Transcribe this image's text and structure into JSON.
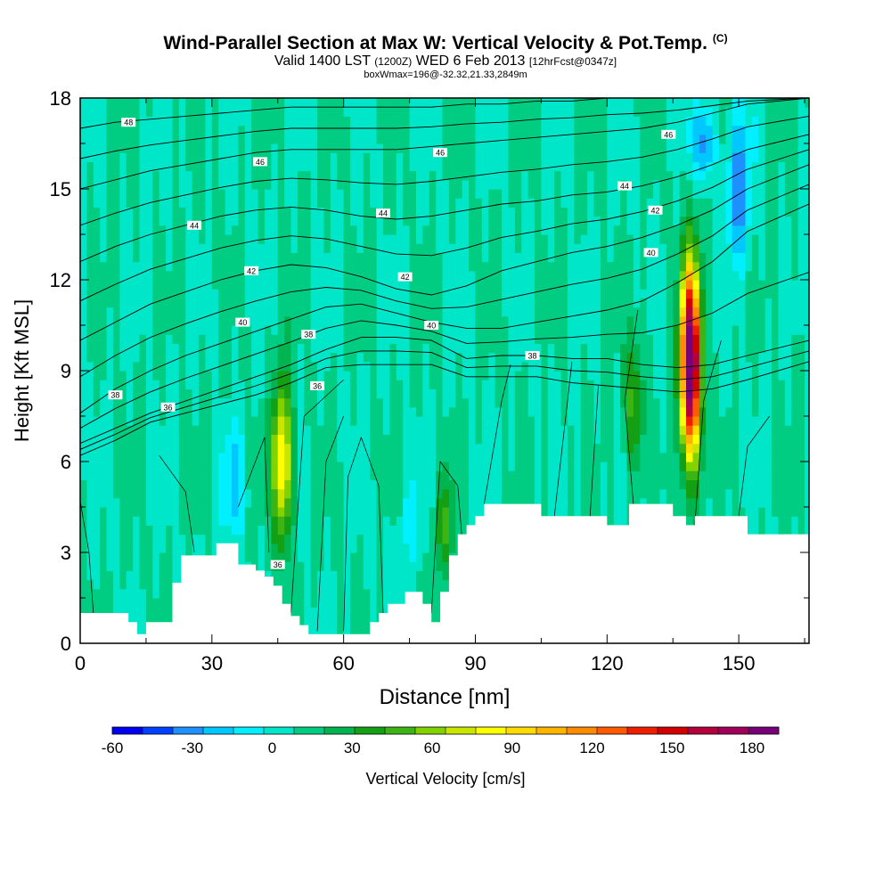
{
  "header": {
    "title": "Wind-Parallel Section at Max W: Vertical Velocity & Pot.Temp.",
    "title_tag": "(C)",
    "valid_prefix": "Valid 1400 LST",
    "valid_z": "(1200Z)",
    "valid_date": "WED 6 Feb 2013",
    "forecast": "[12hrFcst@0347z]",
    "box_info": "boxWmax=196@-32.32,21.33,2849m"
  },
  "chart_data": {
    "type": "heatmap",
    "xlabel": "Distance [nm]",
    "ylabel": "Height [Kft MSL]",
    "xlim": [
      0,
      166
    ],
    "ylim": [
      0,
      18
    ],
    "x_ticks": [
      0,
      30,
      60,
      90,
      120,
      150
    ],
    "y_ticks": [
      0,
      3,
      6,
      9,
      12,
      15,
      18
    ],
    "colorbar": {
      "label": "Vertical Velocity [cm/s]",
      "ticks": [
        -60,
        -30,
        0,
        30,
        60,
        90,
        120,
        150,
        180
      ],
      "range": [
        -60,
        190
      ],
      "colors": [
        "#0000f0",
        "#0040ff",
        "#1e90ff",
        "#00c8ff",
        "#00f0ff",
        "#00e6c8",
        "#00cd82",
        "#00b450",
        "#14a014",
        "#3cb414",
        "#82d200",
        "#c8e600",
        "#ffff00",
        "#ffdc00",
        "#ffb400",
        "#ff8c00",
        "#ff5a00",
        "#f01e00",
        "#d20000",
        "#b4003c",
        "#a0005a",
        "#780078"
      ]
    },
    "jets": [
      {
        "x": 46,
        "z_bottom": 2.0,
        "z_top": 10.0,
        "w_max": 85
      },
      {
        "x": 139,
        "z_bottom": 4.5,
        "z_top": 14.0,
        "w_max": 196
      },
      {
        "x": 83,
        "z_bottom": 1.5,
        "z_top": 6.5,
        "w_max": 35
      },
      {
        "x": 126,
        "z_bottom": 4.6,
        "z_top": 11.0,
        "w_max": 38
      }
    ],
    "downdrafts": [
      {
        "x": 35,
        "z_bottom": 3.0,
        "z_top": 7.5,
        "w_min": -25
      },
      {
        "x": 150,
        "z_bottom": 12.0,
        "z_top": 18.0,
        "w_min": -45
      },
      {
        "x": 142,
        "z_bottom": 15.0,
        "z_top": 18.0,
        "w_min": -40
      },
      {
        "x": 75,
        "z_bottom": 2.0,
        "z_top": 6.0,
        "w_min": -15
      }
    ],
    "terrain": {
      "x": [
        0,
        11,
        13,
        15,
        21,
        23,
        24,
        31,
        35,
        36,
        40,
        42,
        44,
        46,
        48,
        50,
        52,
        55,
        57,
        61,
        64,
        66,
        68,
        70,
        74,
        78,
        80,
        82,
        84,
        86,
        88,
        90,
        92,
        94,
        98,
        105,
        120,
        125,
        130,
        135,
        138,
        140,
        150,
        152,
        166
      ],
      "z": [
        1.0,
        0.7,
        0.3,
        0.7,
        2.0,
        2.9,
        2.9,
        3.3,
        3.3,
        2.6,
        2.4,
        2.2,
        1.9,
        1.3,
        0.9,
        0.6,
        0.3,
        0.3,
        0.3,
        0.3,
        0.3,
        0.7,
        1.0,
        1.3,
        1.7,
        1.3,
        0.7,
        1.7,
        2.9,
        3.6,
        3.9,
        4.2,
        4.6,
        4.6,
        4.6,
        4.2,
        3.9,
        4.6,
        4.6,
        4.2,
        3.9,
        4.2,
        4.2,
        3.6,
        3.6
      ]
    },
    "theta_levels": [
      {
        "value": 36,
        "label_at": [
          [
            20,
            7.8
          ],
          [
            45,
            2.6
          ],
          [
            54,
            8.5
          ]
        ],
        "z": [
          6.2,
          6.7,
          7.3,
          7.6,
          7.9,
          8.2,
          8.6,
          9.1,
          9.2,
          9.2,
          9.2,
          8.8,
          8.8,
          8.8,
          8.6,
          8.5,
          8.4,
          8.3,
          8.4,
          8.7,
          9.3
        ]
      },
      {
        "value": 38,
        "label_at": [
          [
            8,
            8.2
          ],
          [
            52,
            10.2
          ],
          [
            103,
            9.5
          ]
        ],
        "z": [
          6.6,
          7.1,
          7.6,
          8.0,
          8.4,
          8.8,
          9.2,
          9.7,
          10.1,
          10.1,
          10.0,
          9.4,
          9.5,
          9.5,
          9.4,
          9.4,
          9.2,
          9.1,
          9.2,
          9.5,
          10.0
        ]
      },
      {
        "value": 40,
        "label_at": [
          [
            37,
            10.6
          ],
          [
            80,
            10.5
          ],
          [
            130,
            12.9
          ]
        ],
        "z": [
          7.6,
          8.4,
          9.0,
          9.5,
          9.9,
          10.3,
          10.7,
          11.1,
          11.2,
          10.9,
          10.6,
          10.4,
          10.4,
          10.6,
          10.8,
          11.0,
          11.3,
          11.9,
          12.6,
          13.6,
          14.5
        ]
      },
      {
        "value": 42,
        "label_at": [
          [
            39,
            12.3
          ],
          [
            74,
            12.1
          ],
          [
            131,
            14.3
          ]
        ],
        "z": [
          10.0,
          10.6,
          11.2,
          11.6,
          12.0,
          12.3,
          12.5,
          12.4,
          12.1,
          11.7,
          11.5,
          11.8,
          12.3,
          12.6,
          12.9,
          13.1,
          13.4,
          13.8,
          14.3,
          15.0,
          15.8
        ]
      },
      {
        "value": 44,
        "label_at": [
          [
            26,
            13.8
          ],
          [
            69,
            14.2
          ],
          [
            124,
            15.1
          ]
        ],
        "z": [
          12.6,
          13.1,
          13.5,
          13.8,
          14.1,
          14.3,
          14.4,
          14.3,
          14.1,
          14.0,
          14.1,
          14.3,
          14.5,
          14.6,
          14.8,
          14.9,
          15.1,
          15.4,
          15.8,
          16.3,
          16.8
        ]
      },
      {
        "value": 46,
        "label_at": [
          [
            41,
            15.9
          ],
          [
            82,
            16.2
          ],
          [
            134,
            16.8
          ]
        ],
        "z": [
          15.0,
          15.3,
          15.6,
          15.8,
          16.0,
          16.2,
          16.3,
          16.3,
          16.3,
          16.3,
          16.4,
          16.5,
          16.6,
          16.7,
          16.8,
          16.9,
          17.0,
          17.2,
          17.5,
          17.8,
          18.0
        ]
      },
      {
        "value": 48,
        "label_at": [
          [
            11,
            17.2
          ]
        ],
        "z": [
          17.0,
          17.2,
          17.3,
          17.4,
          17.5,
          17.6,
          17.7,
          17.7,
          17.7,
          17.7,
          17.7,
          17.8,
          17.8,
          17.9,
          17.9,
          18.0,
          18.0,
          18.0,
          18.0,
          18.0,
          18.0
        ]
      }
    ],
    "theta_x": [
      0,
      8,
      16,
      24,
      32,
      40,
      48,
      56,
      64,
      72,
      80,
      88,
      96,
      104,
      112,
      120,
      128,
      136,
      144,
      152,
      166
    ],
    "w_isolines": [
      {
        "points": [
          [
            0,
            4.7
          ],
          [
            2,
            3.0
          ],
          [
            3,
            1.0
          ]
        ]
      },
      {
        "points": [
          [
            18,
            6.2
          ],
          [
            24,
            5.0
          ],
          [
            26,
            3.0
          ]
        ]
      },
      {
        "points": [
          [
            36,
            4.5
          ],
          [
            42,
            6.8
          ],
          [
            43,
            3.0
          ]
        ]
      },
      {
        "points": [
          [
            48,
            1.0
          ],
          [
            51,
            7.5
          ],
          [
            60,
            8.7
          ]
        ]
      },
      {
        "points": [
          [
            54,
            0.4
          ],
          [
            56,
            6.0
          ],
          [
            60,
            7.5
          ]
        ]
      },
      {
        "points": [
          [
            60,
            0.4
          ],
          [
            61,
            5.5
          ],
          [
            64,
            6.8
          ],
          [
            68,
            5.2
          ],
          [
            69,
            1.0
          ]
        ]
      },
      {
        "points": [
          [
            80,
            1.0
          ],
          [
            82,
            6.0
          ],
          [
            86,
            5.2
          ],
          [
            87,
            3.4
          ]
        ]
      },
      {
        "points": [
          [
            92,
            4.6
          ],
          [
            96,
            8.0
          ],
          [
            98,
            9.2
          ]
        ]
      },
      {
        "points": [
          [
            108,
            4.2
          ],
          [
            111,
            8.0
          ],
          [
            112,
            9.3
          ]
        ]
      },
      {
        "points": [
          [
            116,
            3.9
          ],
          [
            118,
            8.5
          ]
        ]
      },
      {
        "points": [
          [
            126,
            4.6
          ],
          [
            124,
            8.0
          ],
          [
            127,
            11.0
          ]
        ]
      },
      {
        "points": [
          [
            140,
            3.9
          ],
          [
            142,
            8.0
          ],
          [
            146,
            10.0
          ]
        ]
      },
      {
        "points": [
          [
            150,
            4.2
          ],
          [
            152,
            6.5
          ],
          [
            157,
            7.5
          ]
        ]
      }
    ]
  }
}
